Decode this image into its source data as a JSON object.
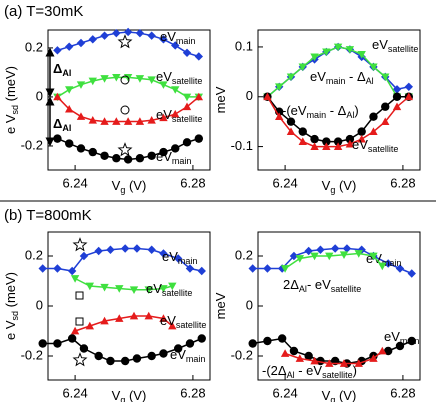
{
  "chart_data": [
    {
      "type": "line",
      "title": "(a) T=30mK",
      "ylabel": [
        {
          "text": "e V"
        },
        {
          "sub": "sd"
        },
        {
          "text": " (meV)"
        }
      ],
      "xlabel": [
        {
          "text": "V"
        },
        {
          "sub": "g"
        },
        {
          "text": " (V)"
        }
      ],
      "xlim": [
        6.2308,
        6.2858
      ],
      "xticks": [
        6.24,
        6.28
      ],
      "ylim": [
        -0.298,
        0.273
      ],
      "yticks": [
        -0.2,
        0,
        0.2
      ],
      "annotations": [
        [
          {
            "text": "Δ"
          },
          {
            "sub": "Al"
          }
        ],
        [
          {
            "text": "Δ"
          },
          {
            "sub": "Al"
          }
        ]
      ],
      "series": [
        {
          "label": [
            {
              "text": "eV"
            },
            {
              "sub": "main"
            }
          ],
          "color": "#1f3fd6",
          "marker": "diamond",
          "x": [
            6.234,
            6.238,
            6.242,
            6.246,
            6.25,
            6.254,
            6.258,
            6.262,
            6.266,
            6.27,
            6.274,
            6.278,
            6.282
          ],
          "values": [
            0.19,
            0.205,
            0.22,
            0.235,
            0.25,
            0.26,
            0.265,
            0.26,
            0.25,
            0.235,
            0.21,
            0.18,
            0.165
          ]
        },
        {
          "label": [
            {
              "text": "eV"
            },
            {
              "sub": "satellite"
            }
          ],
          "color": "#3fe03f",
          "marker": "triangle-down",
          "x": [
            6.234,
            6.238,
            6.242,
            6.246,
            6.25,
            6.254,
            6.258,
            6.262,
            6.266,
            6.27,
            6.274,
            6.278,
            6.282
          ],
          "values": [
            0.0,
            0.03,
            0.05,
            0.065,
            0.075,
            0.08,
            0.08,
            0.075,
            0.07,
            0.05,
            0.03,
            0.0,
            0.0
          ]
        },
        {
          "label": [
            {
              "text": "eV"
            },
            {
              "sub": "satellite"
            }
          ],
          "color": "#e51b1b",
          "marker": "triangle-up",
          "x": [
            6.234,
            6.238,
            6.242,
            6.246,
            6.25,
            6.254,
            6.258,
            6.262,
            6.266,
            6.27,
            6.274,
            6.278,
            6.282
          ],
          "values": [
            0.0,
            -0.05,
            -0.08,
            -0.095,
            -0.1,
            -0.1,
            -0.1,
            -0.1,
            -0.095,
            -0.085,
            -0.07,
            -0.04,
            0.0
          ]
        },
        {
          "label": [
            {
              "text": "eV"
            },
            {
              "sub": "main"
            }
          ],
          "color": "#000000",
          "marker": "circle",
          "x": [
            6.234,
            6.238,
            6.242,
            6.246,
            6.25,
            6.254,
            6.258,
            6.262,
            6.266,
            6.27,
            6.274,
            6.278,
            6.282
          ],
          "values": [
            -0.17,
            -0.19,
            -0.21,
            -0.225,
            -0.24,
            -0.25,
            -0.255,
            -0.25,
            -0.24,
            -0.225,
            -0.21,
            -0.185,
            -0.17
          ]
        }
      ]
    },
    {
      "type": "line",
      "ylabel": [
        {
          "text": "meV"
        }
      ],
      "xlabel": [
        {
          "text": "V"
        },
        {
          "sub": "g"
        },
        {
          "text": " (V)"
        }
      ],
      "xlim": [
        6.2308,
        6.2858
      ],
      "xticks": [
        6.24,
        6.28
      ],
      "ylim": [
        -0.147,
        0.134
      ],
      "yticks": [
        -0.1,
        0,
        0.1
      ],
      "series": [
        {
          "label": [
            {
              "text": "eV"
            },
            {
              "sub": "main"
            },
            {
              "text": " - Δ"
            },
            {
              "sub": "Al"
            }
          ],
          "color": "#1f3fd6",
          "marker": "diamond",
          "x": [
            6.234,
            6.238,
            6.242,
            6.246,
            6.25,
            6.254,
            6.258,
            6.262,
            6.266,
            6.27,
            6.274,
            6.278,
            6.282
          ],
          "values": [
            0.0,
            0.02,
            0.04,
            0.06,
            0.075,
            0.09,
            0.1,
            0.095,
            0.08,
            0.06,
            0.04,
            0.015,
            0.02
          ]
        },
        {
          "label": [
            {
              "text": "eV"
            },
            {
              "sub": "satellite"
            }
          ],
          "color": "#3fe03f",
          "marker": "triangle-down",
          "x": [
            6.234,
            6.238,
            6.242,
            6.246,
            6.25,
            6.254,
            6.258,
            6.262,
            6.266,
            6.27,
            6.274,
            6.278,
            6.282
          ],
          "values": [
            0.0,
            0.02,
            0.04,
            0.06,
            0.08,
            0.09,
            0.1,
            0.095,
            0.085,
            0.06,
            0.04,
            0.0,
            0.0
          ]
        },
        {
          "label": [
            {
              "text": "-(eV"
            },
            {
              "sub": "main"
            },
            {
              "text": " - Δ"
            },
            {
              "sub": "Al"
            },
            {
              "text": ")"
            }
          ],
          "color": "#000000",
          "marker": "circle",
          "x": [
            6.234,
            6.238,
            6.242,
            6.246,
            6.25,
            6.254,
            6.258,
            6.262,
            6.266,
            6.27,
            6.274,
            6.278,
            6.282
          ],
          "values": [
            0.0,
            -0.03,
            -0.05,
            -0.07,
            -0.085,
            -0.09,
            -0.09,
            -0.085,
            -0.07,
            -0.04,
            -0.02,
            0.0,
            0.0
          ]
        },
        {
          "label": [
            {
              "text": "eV"
            },
            {
              "sub": "satellite"
            }
          ],
          "color": "#e51b1b",
          "marker": "triangle-up",
          "x": [
            6.234,
            6.238,
            6.242,
            6.246,
            6.25,
            6.254,
            6.258,
            6.262,
            6.266,
            6.27,
            6.274,
            6.278,
            6.282
          ],
          "values": [
            0.0,
            -0.04,
            -0.07,
            -0.09,
            -0.1,
            -0.1,
            -0.1,
            -0.095,
            -0.085,
            -0.07,
            -0.05,
            -0.02,
            0.0
          ]
        }
      ]
    },
    {
      "type": "line",
      "title": "(b) T=800mK",
      "ylabel": [
        {
          "text": "e V"
        },
        {
          "sub": "sd"
        },
        {
          "text": " (meV)"
        }
      ],
      "xlabel": [
        {
          "text": "V"
        },
        {
          "sub": "g"
        },
        {
          "text": " (V)"
        }
      ],
      "xlim": [
        6.2308,
        6.2858
      ],
      "xticks": [
        6.24,
        6.28
      ],
      "ylim": [
        -0.296,
        0.296
      ],
      "yticks": [
        -0.2,
        0,
        0.2
      ],
      "series": [
        {
          "label": [
            {
              "text": "eV"
            },
            {
              "sub": "main"
            }
          ],
          "color": "#1f3fd6",
          "marker": "diamond",
          "x": [
            6.229,
            6.234,
            6.239,
            6.243,
            6.248,
            6.252,
            6.257,
            6.261,
            6.266,
            6.27,
            6.275,
            6.279,
            6.283
          ],
          "values": [
            0.15,
            0.15,
            0.14,
            0.2,
            0.22,
            0.225,
            0.23,
            0.23,
            0.225,
            0.21,
            0.19,
            0.15,
            0.14
          ]
        },
        {
          "label": [
            {
              "text": "eV"
            },
            {
              "sub": "satellite"
            }
          ],
          "color": "#3fe03f",
          "marker": "triangle-down",
          "x": [
            6.24,
            6.245,
            6.25,
            6.255,
            6.26,
            6.265,
            6.27,
            6.273
          ],
          "values": [
            0.11,
            0.08,
            0.075,
            0.07,
            0.065,
            0.065,
            0.07,
            0.08
          ]
        },
        {
          "label": [
            {
              "text": "eV"
            },
            {
              "sub": "satellite"
            }
          ],
          "color": "#e51b1b",
          "marker": "triangle-up",
          "x": [
            6.24,
            6.245,
            6.25,
            6.255,
            6.26,
            6.265,
            6.27,
            6.273
          ],
          "values": [
            -0.1,
            -0.08,
            -0.06,
            -0.05,
            -0.04,
            -0.04,
            -0.05,
            -0.08
          ]
        },
        {
          "label": [
            {
              "text": "eV"
            },
            {
              "sub": "main"
            }
          ],
          "color": "#000000",
          "marker": "circle",
          "x": [
            6.229,
            6.234,
            6.239,
            6.243,
            6.248,
            6.252,
            6.257,
            6.261,
            6.266,
            6.27,
            6.275,
            6.279,
            6.283
          ],
          "values": [
            -0.15,
            -0.15,
            -0.13,
            -0.17,
            -0.2,
            -0.22,
            -0.22,
            -0.21,
            -0.2,
            -0.19,
            -0.17,
            -0.15,
            -0.13
          ]
        }
      ]
    },
    {
      "type": "line",
      "ylabel": [
        {
          "text": "meV"
        }
      ],
      "xlabel": [
        {
          "text": "V"
        },
        {
          "sub": "g"
        },
        {
          "text": " (V)"
        }
      ],
      "xlim": [
        6.2308,
        6.2858
      ],
      "xticks": [
        6.24,
        6.28
      ],
      "ylim": [
        -0.296,
        0.296
      ],
      "yticks": [
        -0.2,
        0,
        0.2
      ],
      "series": [
        {
          "label": [
            {
              "text": "eV"
            },
            {
              "sub": "main"
            }
          ],
          "color": "#1f3fd6",
          "marker": "diamond",
          "x": [
            6.229,
            6.234,
            6.239,
            6.243,
            6.248,
            6.252,
            6.257,
            6.261,
            6.266,
            6.27,
            6.275,
            6.279,
            6.283
          ],
          "values": [
            0.15,
            0.15,
            0.15,
            0.2,
            0.22,
            0.225,
            0.23,
            0.23,
            0.225,
            0.2,
            0.17,
            0.15,
            0.13
          ]
        },
        {
          "label": [
            {
              "text": "2Δ"
            },
            {
              "sub": "Al"
            },
            {
              "text": "- eV"
            },
            {
              "sub": "satellite"
            }
          ],
          "color": "#3fe03f",
          "marker": "triangle-down",
          "x": [
            6.24,
            6.245,
            6.25,
            6.255,
            6.26,
            6.265,
            6.27,
            6.273
          ],
          "values": [
            0.15,
            0.19,
            0.2,
            0.2,
            0.205,
            0.21,
            0.2,
            0.16
          ]
        },
        {
          "label": [
            {
              "text": "eV"
            },
            {
              "sub": "main"
            }
          ],
          "color": "#000000",
          "marker": "circle",
          "x": [
            6.229,
            6.234,
            6.239,
            6.243,
            6.248,
            6.252,
            6.257,
            6.261,
            6.266,
            6.27,
            6.275,
            6.279,
            6.283
          ],
          "values": [
            -0.15,
            -0.14,
            -0.13,
            -0.18,
            -0.2,
            -0.22,
            -0.22,
            -0.23,
            -0.22,
            -0.2,
            -0.18,
            -0.16,
            -0.14
          ]
        },
        {
          "label": [
            {
              "text": "-(2Δ"
            },
            {
              "sub": "Al"
            },
            {
              "text": " - eV"
            },
            {
              "sub": "satellite"
            },
            {
              "text": ")"
            }
          ],
          "color": "#e51b1b",
          "marker": "triangle-up",
          "x": [
            6.24,
            6.245,
            6.25,
            6.255,
            6.26,
            6.265,
            6.27,
            6.273
          ],
          "values": [
            -0.19,
            -0.21,
            -0.22,
            -0.23,
            -0.23,
            -0.23,
            -0.21,
            -0.18
          ]
        }
      ]
    }
  ]
}
